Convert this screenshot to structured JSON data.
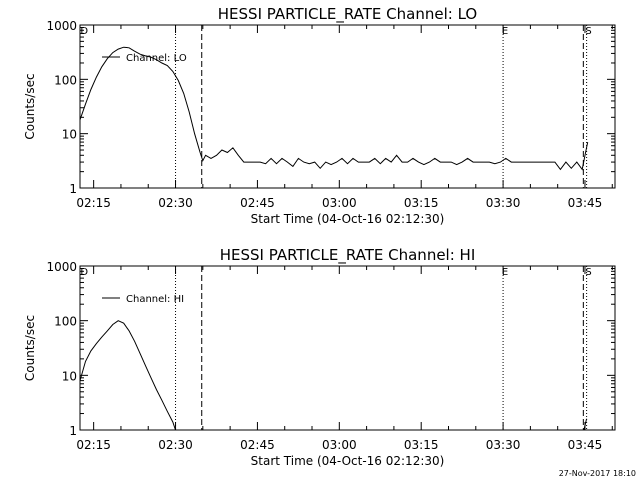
{
  "chart_data": [
    {
      "type": "line",
      "title": "HESSI PARTICLE_RATE Channel: LO",
      "xlabel": "Start Time (04-Oct-16 02:12:30)",
      "ylabel": "Counts/sec",
      "yscale": "log",
      "ylim": [
        1,
        1000
      ],
      "xlim_minutes": [
        0,
        98
      ],
      "x_ticks": [
        {
          "t": 2.5,
          "label": "02:15"
        },
        {
          "t": 17.5,
          "label": "02:30"
        },
        {
          "t": 32.5,
          "label": "02:45"
        },
        {
          "t": 47.5,
          "label": "03:00"
        },
        {
          "t": 62.5,
          "label": "03:15"
        },
        {
          "t": 77.5,
          "label": "03:30"
        },
        {
          "t": 92.5,
          "label": "03:45"
        }
      ],
      "y_ticks": [
        {
          "v": 1,
          "label": "1"
        },
        {
          "v": 10,
          "label": "10"
        },
        {
          "v": 100,
          "label": "100"
        },
        {
          "v": 1000,
          "label": "1000"
        }
      ],
      "legend": "Channel: LO",
      "markers": [
        {
          "t": 0.4,
          "label": "D"
        },
        {
          "t": 77.5,
          "label": "E"
        },
        {
          "t": 92.8,
          "label": "S"
        }
      ],
      "vlines_dotted": [
        17.5,
        77.5,
        92.8
      ],
      "vlines_dashed": [
        22.3,
        92.2
      ],
      "series": [
        {
          "name": "Channel: LO",
          "t": [
            0,
            1,
            2,
            3,
            4,
            5,
            6,
            7,
            8,
            9,
            10,
            11,
            12,
            13,
            14,
            15,
            16,
            17,
            18,
            19,
            20,
            21,
            22,
            22.5,
            23,
            24,
            25,
            26,
            27,
            28,
            29,
            30,
            31,
            32,
            33,
            34,
            35,
            36,
            37,
            38,
            39,
            40,
            41,
            42,
            43,
            44,
            45,
            46,
            47,
            48,
            49,
            50,
            51,
            52,
            53,
            54,
            55,
            56,
            57,
            58,
            59,
            60,
            61,
            62,
            63,
            64,
            65,
            66,
            67,
            68,
            69,
            70,
            71,
            72,
            73,
            74,
            75,
            76,
            77,
            78,
            79,
            80,
            81,
            82,
            83,
            84,
            85,
            86,
            87,
            88,
            89,
            90,
            91,
            92,
            92.5,
            93
          ],
          "values": [
            18,
            35,
            65,
            110,
            170,
            240,
            310,
            360,
            390,
            380,
            330,
            290,
            270,
            255,
            230,
            200,
            180,
            140,
            95,
            55,
            25,
            10,
            4.5,
            3.2,
            4,
            3.5,
            4,
            5,
            4.5,
            5.5,
            4,
            3,
            3,
            3,
            3,
            2.8,
            3.5,
            2.8,
            3.5,
            3,
            2.5,
            3.5,
            3,
            2.8,
            3,
            2.3,
            3,
            2.7,
            3,
            3.5,
            2.8,
            3.5,
            3,
            3,
            3,
            3.5,
            2.8,
            3.5,
            3,
            4,
            3,
            3,
            3.5,
            3,
            2.7,
            3,
            3.5,
            3,
            3,
            3,
            2.7,
            3,
            3.5,
            3,
            3,
            3,
            3,
            2.8,
            3,
            3.5,
            3,
            3,
            3,
            3,
            3,
            3,
            3,
            3,
            3,
            2.2,
            3,
            2.3,
            3,
            2.2,
            4,
            7
          ]
        }
      ]
    },
    {
      "type": "line",
      "title": "HESSI PARTICLE_RATE Channel: HI",
      "xlabel": "Start Time (04-Oct-16 02:12:30)",
      "ylabel": "Counts/sec",
      "yscale": "log",
      "ylim": [
        1,
        1000
      ],
      "xlim_minutes": [
        0,
        98
      ],
      "x_ticks": [
        {
          "t": 2.5,
          "label": "02:15"
        },
        {
          "t": 17.5,
          "label": "02:30"
        },
        {
          "t": 32.5,
          "label": "02:45"
        },
        {
          "t": 47.5,
          "label": "03:00"
        },
        {
          "t": 62.5,
          "label": "03:15"
        },
        {
          "t": 77.5,
          "label": "03:30"
        },
        {
          "t": 92.5,
          "label": "03:45"
        }
      ],
      "y_ticks": [
        {
          "v": 1,
          "label": "1"
        },
        {
          "v": 10,
          "label": "10"
        },
        {
          "v": 100,
          "label": "100"
        },
        {
          "v": 1000,
          "label": "1000"
        }
      ],
      "legend": "Channel: HI",
      "markers": [
        {
          "t": 0.4,
          "label": "D"
        },
        {
          "t": 77.5,
          "label": "E"
        },
        {
          "t": 92.8,
          "label": "S"
        }
      ],
      "vlines_dotted": [
        17.5,
        77.5,
        92.8
      ],
      "vlines_dashed": [
        22.3,
        92.2
      ],
      "series": [
        {
          "name": "Channel: HI",
          "t": [
            0,
            1,
            2,
            3,
            4,
            5,
            6,
            7,
            8,
            9,
            10,
            11,
            12,
            13,
            14,
            15,
            16,
            17,
            17.5
          ],
          "values": [
            8,
            18,
            28,
            38,
            50,
            65,
            85,
            100,
            90,
            65,
            42,
            25,
            15,
            9,
            5.5,
            3.5,
            2.2,
            1.4,
            1
          ],
          "tail": {
            "t": [
              92.3,
              92.8
            ],
            "values": [
              1,
              1.6
            ]
          }
        }
      ]
    }
  ],
  "footer_timestamp": "27-Nov-2017 18:10"
}
